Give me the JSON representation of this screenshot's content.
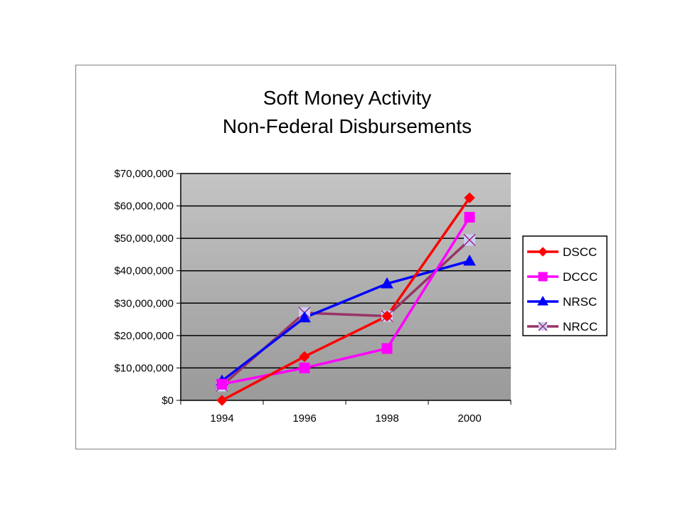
{
  "chart_data": {
    "type": "line",
    "title": [
      "Soft Money Activity",
      "Non-Federal Disbursements"
    ],
    "categories": [
      "1994",
      "1996",
      "1998",
      "2000"
    ],
    "y_tick_labels": [
      "$0",
      "$10,000,000",
      "$20,000,000",
      "$30,000,000",
      "$40,000,000",
      "$50,000,000",
      "$60,000,000",
      "$70,000,000"
    ],
    "ylim": [
      0,
      70000000
    ],
    "y_step": 10000000,
    "grid": "horizontal",
    "legend_position": "right",
    "plot_background": "#c0c0c0",
    "series": [
      {
        "name": "DSCC",
        "color": "#ff0000",
        "marker": "diamond",
        "values": [
          0,
          13500000,
          26000000,
          62500000
        ]
      },
      {
        "name": "DCCC",
        "color": "#ff00ff",
        "marker": "square",
        "values": [
          5000000,
          10000000,
          16000000,
          56500000
        ]
      },
      {
        "name": "NRSC",
        "color": "#0000ff",
        "marker": "triangle",
        "values": [
          6000000,
          25500000,
          36000000,
          43000000
        ]
      },
      {
        "name": "NRCC",
        "color": "#993366",
        "marker": "x",
        "values": [
          4500000,
          27000000,
          26000000,
          49500000
        ]
      }
    ]
  }
}
